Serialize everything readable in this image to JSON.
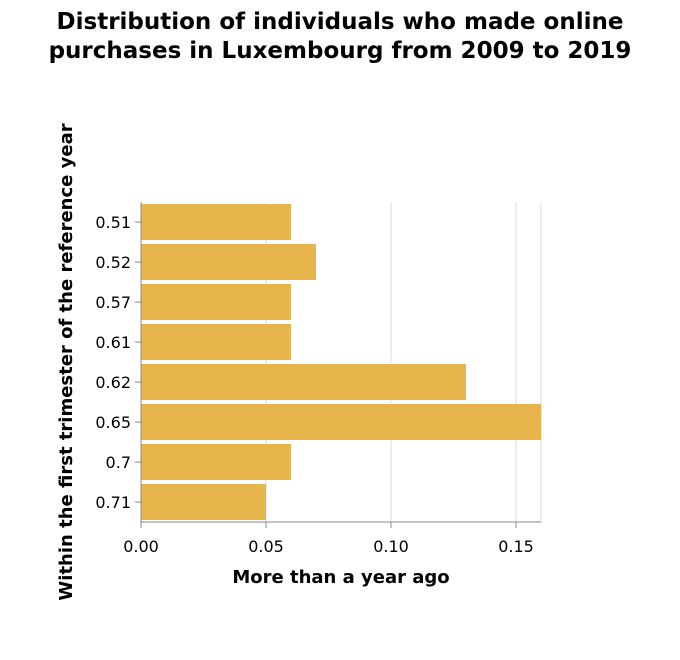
{
  "chart_data": {
    "type": "bar",
    "orientation": "horizontal",
    "title_lines": [
      "Distribution of individuals who made online",
      "purchases in Luxembourg from 2009 to 2019"
    ],
    "xlabel": "More than a year ago",
    "ylabel": "Within the first trimester of the reference year",
    "categories": [
      "0.51",
      "0.52",
      "0.57",
      "0.61",
      "0.62",
      "0.65",
      "0.7",
      "0.71"
    ],
    "values": [
      0.06,
      0.07,
      0.06,
      0.06,
      0.13,
      0.16,
      0.06,
      0.05
    ],
    "x_ticks": [
      "0.00",
      "0.05",
      "0.10",
      "0.15"
    ],
    "xlim": [
      0,
      0.16
    ],
    "grid": "vertical",
    "bar_color": "#e8b54d",
    "grid_color": "#dddddd",
    "axis_color": "#888888"
  }
}
